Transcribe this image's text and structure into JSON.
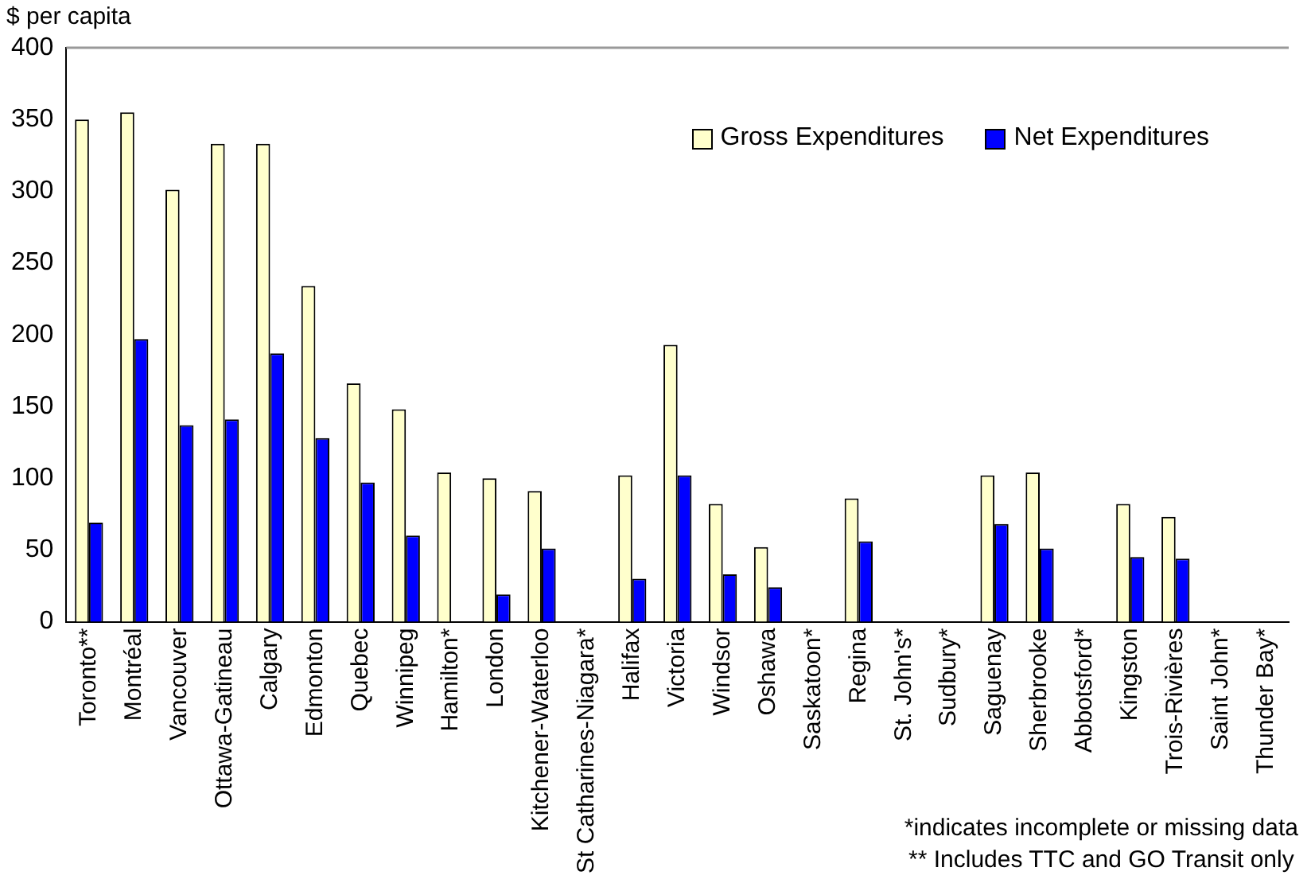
{
  "chart_data": {
    "type": "bar",
    "ylabel": "$ per capita",
    "categories": [
      "Toronto**",
      "Montréal",
      "Vancouver",
      "Ottawa-Gatineau",
      "Calgary",
      "Edmonton",
      "Quebec",
      "Winnipeg",
      "Hamilton*",
      "London",
      "Kitchener-Waterloo",
      "St Catharines-Niagara*",
      "Halifax",
      "Victoria",
      "Windsor",
      "Oshawa",
      "Saskatoon*",
      "Regina",
      "St. John's*",
      "Sudbury*",
      "Saguenay",
      "Sherbrooke",
      "Abbotsford*",
      "Kingston",
      "Trois-Rivières",
      "Saint John*",
      "Thunder Bay*"
    ],
    "series": [
      {
        "name": "Gross Expenditures",
        "color": "#ffffcc",
        "values": [
          350,
          355,
          301,
          333,
          333,
          234,
          166,
          148,
          104,
          100,
          91,
          null,
          102,
          193,
          82,
          52,
          null,
          86,
          null,
          null,
          102,
          104,
          null,
          82,
          73,
          null,
          null
        ]
      },
      {
        "name": "Net Expenditures",
        "color": "#0000ff",
        "values": [
          69,
          197,
          137,
          141,
          187,
          128,
          97,
          60,
          null,
          19,
          51,
          null,
          30,
          102,
          33,
          24,
          null,
          56,
          null,
          null,
          68,
          51,
          null,
          45,
          44,
          null,
          null
        ]
      }
    ],
    "ylim": [
      0,
      400
    ],
    "yticks": [
      0,
      50,
      100,
      150,
      200,
      250,
      300,
      350,
      400
    ],
    "grid": false,
    "legend": "top right",
    "annotations": [
      "*indicates incomplete or missing data",
      "** Includes TTC and GO Transit only"
    ]
  }
}
